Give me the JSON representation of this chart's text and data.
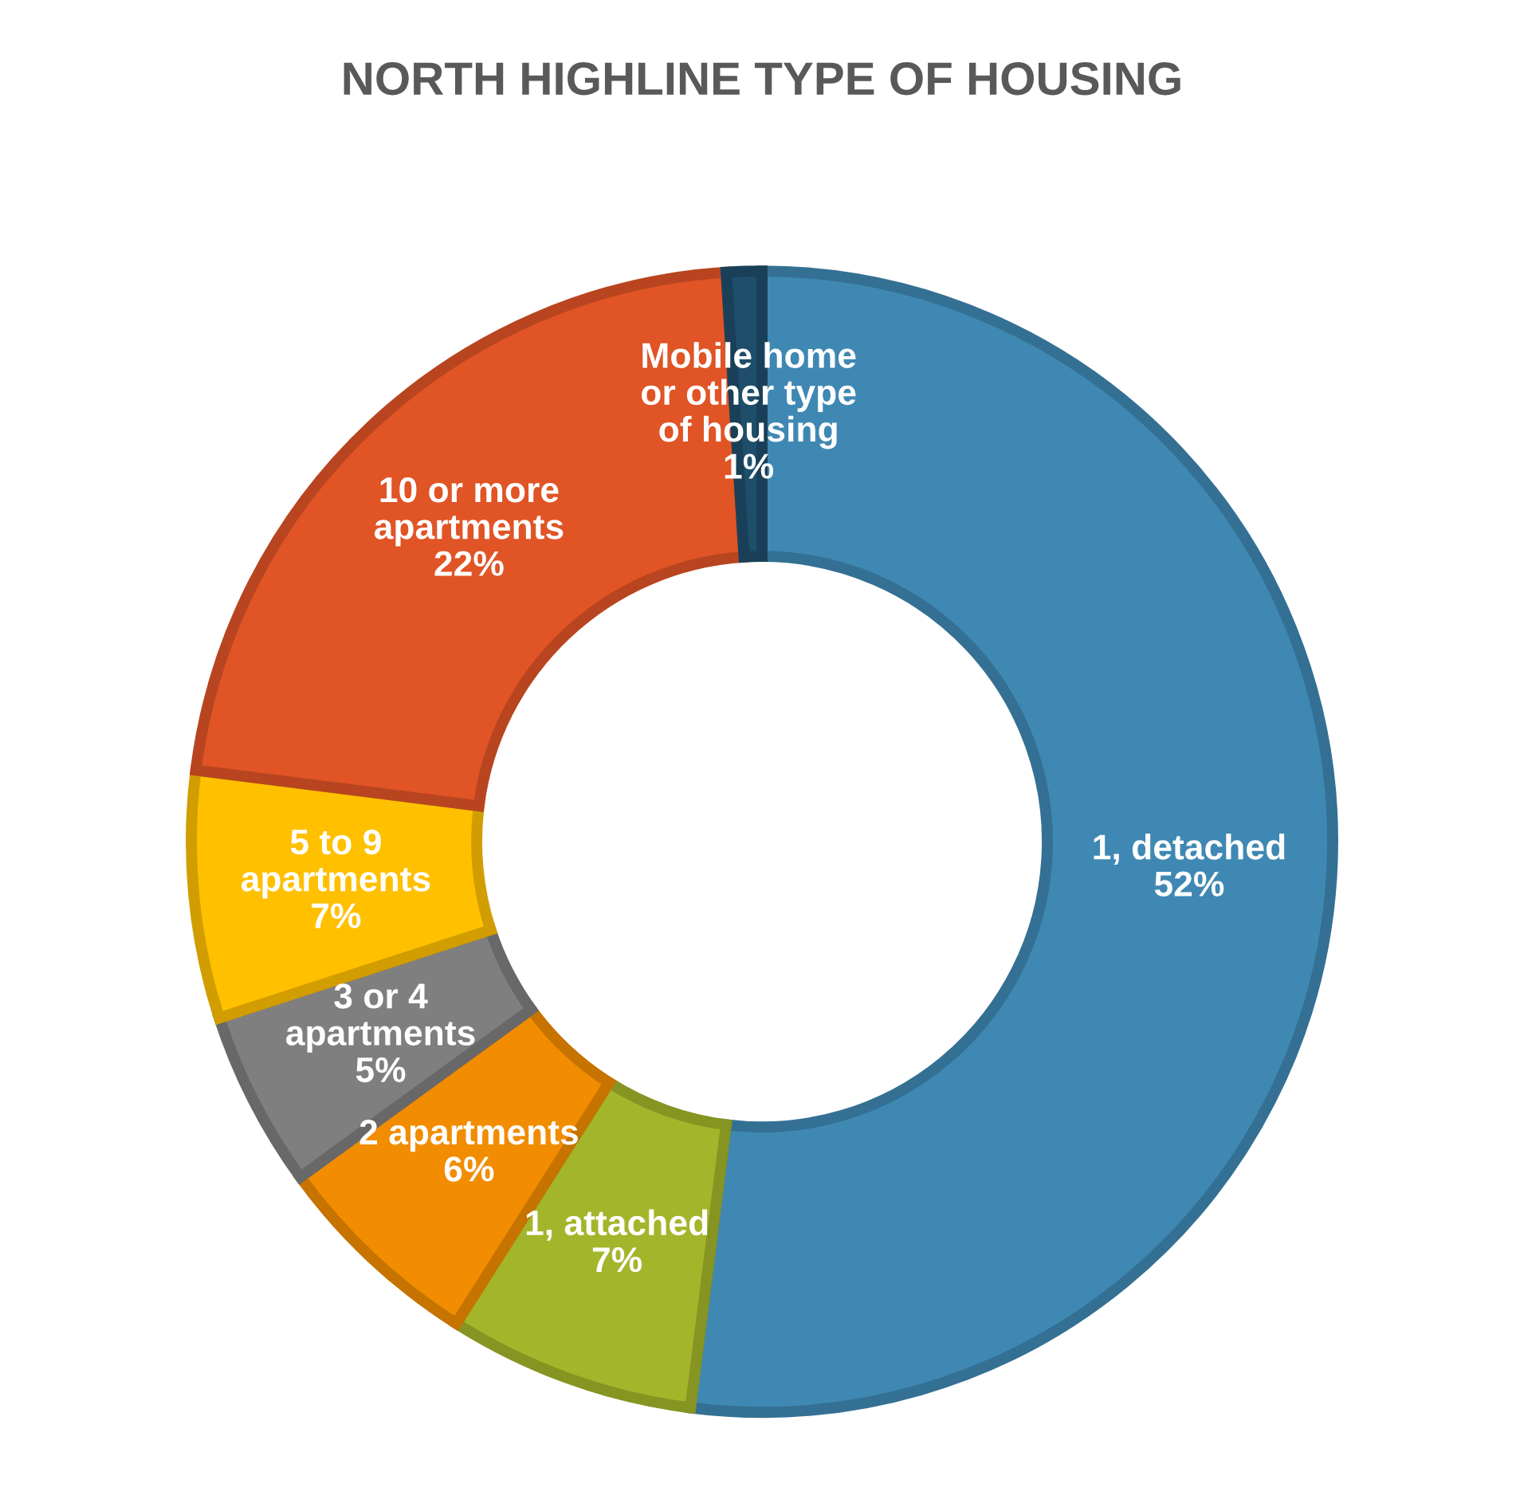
{
  "chart_data": {
    "type": "donut",
    "title": "NORTH HIGHLINE TYPE OF HOUSING",
    "categories": [
      "1, detached",
      "1, attached",
      "2 apartments",
      "3 or 4\napartments",
      "5 to 9\napartments",
      "10 or more\napartments",
      "Mobile home\nor other type\nof housing"
    ],
    "values": [
      52,
      7,
      6,
      5,
      7,
      22,
      1
    ],
    "value_labels": [
      "52%",
      "7%",
      "6%",
      "5%",
      "7%",
      "22%",
      "1%"
    ],
    "colors": [
      "#3f88b3",
      "#a3b52a",
      "#f28c00",
      "#7f7f7f",
      "#ffc000",
      "#e05426",
      "#1f4e6b"
    ]
  }
}
